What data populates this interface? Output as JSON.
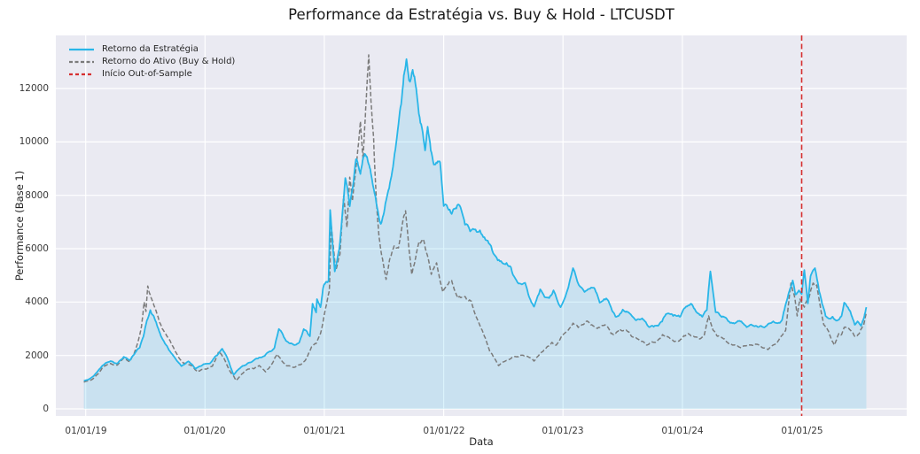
{
  "chart_data": {
    "type": "line",
    "title": "Performance da Estratégia vs. Buy & Hold - LTCUSDT",
    "xlabel": "Data",
    "ylabel": "Performance (Base 1)",
    "grid": true,
    "legend_position": "upper left",
    "plot_bg": "#eaeaf2",
    "grid_color": "#ffffff",
    "x_unit": "years since 2019-01-01",
    "x_range_years": [
      -0.25,
      6.88
    ],
    "y_range": [
      -265,
      13990
    ],
    "y_ticks": [
      0,
      2000,
      4000,
      6000,
      8000,
      10000,
      12000
    ],
    "x_ticks": [
      {
        "t": 0,
        "label": "01/01/19"
      },
      {
        "t": 1,
        "label": "01/01/20"
      },
      {
        "t": 2,
        "label": "01/01/21"
      },
      {
        "t": 3,
        "label": "01/01/22"
      },
      {
        "t": 4,
        "label": "01/01/23"
      },
      {
        "t": 5,
        "label": "01/01/24"
      },
      {
        "t": 6,
        "label": "01/01/25"
      }
    ],
    "vline": {
      "label": "Início Out-of-Sample",
      "x_years": 6.0,
      "color": "#d62f2f",
      "line_style": "dashed"
    },
    "series": [
      {
        "name": "Retorno da Estratégia",
        "color": "#29b6e8",
        "line_style": "solid",
        "fill_to_zero": true,
        "fill_color": "rgba(41,182,232,0.17)",
        "points": [
          [
            -0.015,
            1060
          ],
          [
            0.067,
            1230
          ],
          [
            0.141,
            1620
          ],
          [
            0.208,
            1790
          ],
          [
            0.267,
            1700
          ],
          [
            0.319,
            1950
          ],
          [
            0.371,
            1820
          ],
          [
            0.408,
            2050
          ],
          [
            0.453,
            2300
          ],
          [
            0.483,
            2700
          ],
          [
            0.512,
            3300
          ],
          [
            0.542,
            3700
          ],
          [
            0.572,
            3450
          ],
          [
            0.609,
            3000
          ],
          [
            0.653,
            2550
          ],
          [
            0.698,
            2200
          ],
          [
            0.757,
            1850
          ],
          [
            0.802,
            1600
          ],
          [
            0.861,
            1780
          ],
          [
            0.921,
            1500
          ],
          [
            0.973,
            1620
          ],
          [
            1.04,
            1700
          ],
          [
            1.099,
            2000
          ],
          [
            1.144,
            2250
          ],
          [
            1.188,
            1900
          ],
          [
            1.24,
            1280
          ],
          [
            1.285,
            1500
          ],
          [
            1.344,
            1650
          ],
          [
            1.403,
            1800
          ],
          [
            1.47,
            1930
          ],
          [
            1.53,
            2120
          ],
          [
            1.582,
            2290
          ],
          [
            1.619,
            2990
          ],
          [
            1.641,
            2880
          ],
          [
            1.678,
            2550
          ],
          [
            1.715,
            2450
          ],
          [
            1.752,
            2390
          ],
          [
            1.79,
            2490
          ],
          [
            1.827,
            2990
          ],
          [
            1.856,
            2880
          ],
          [
            1.879,
            2720
          ],
          [
            1.901,
            3940
          ],
          [
            1.931,
            3610
          ],
          [
            1.938,
            4110
          ],
          [
            1.968,
            3810
          ],
          [
            1.99,
            4540
          ],
          [
            2.012,
            4750
          ],
          [
            2.035,
            4800
          ],
          [
            2.049,
            7450
          ],
          [
            2.087,
            5150
          ],
          [
            2.124,
            5950
          ],
          [
            2.176,
            8650
          ],
          [
            2.213,
            7590
          ],
          [
            2.265,
            9350
          ],
          [
            2.302,
            8800
          ],
          [
            2.339,
            9550
          ],
          [
            2.376,
            9120
          ],
          [
            2.413,
            8250
          ],
          [
            2.473,
            6930
          ],
          [
            2.517,
            7800
          ],
          [
            2.569,
            8910
          ],
          [
            2.621,
            10670
          ],
          [
            2.666,
            12500
          ],
          [
            2.688,
            13100
          ],
          [
            2.71,
            12300
          ],
          [
            2.74,
            12700
          ],
          [
            2.77,
            12000
          ],
          [
            2.792,
            11050
          ],
          [
            2.844,
            9680
          ],
          [
            2.866,
            10570
          ],
          [
            2.918,
            9150
          ],
          [
            2.97,
            9240
          ],
          [
            3.0,
            7600
          ],
          [
            3.067,
            7300
          ],
          [
            3.119,
            7650
          ],
          [
            3.178,
            6900
          ],
          [
            3.267,
            6720
          ],
          [
            3.341,
            6430
          ],
          [
            3.416,
            5820
          ],
          [
            3.49,
            5470
          ],
          [
            3.564,
            5300
          ],
          [
            3.609,
            4820
          ],
          [
            3.683,
            4720
          ],
          [
            3.735,
            3990
          ],
          [
            3.757,
            3830
          ],
          [
            3.809,
            4480
          ],
          [
            3.883,
            4150
          ],
          [
            3.92,
            4440
          ],
          [
            3.98,
            3810
          ],
          [
            4.084,
            5270
          ],
          [
            4.18,
            4380
          ],
          [
            4.255,
            4540
          ],
          [
            4.307,
            3980
          ],
          [
            4.381,
            4040
          ],
          [
            4.44,
            3450
          ],
          [
            4.5,
            3720
          ],
          [
            4.552,
            3600
          ],
          [
            4.611,
            3320
          ],
          [
            4.663,
            3390
          ],
          [
            4.722,
            3060
          ],
          [
            4.797,
            3110
          ],
          [
            4.863,
            3550
          ],
          [
            4.923,
            3480
          ],
          [
            4.982,
            3450
          ],
          [
            5.027,
            3810
          ],
          [
            5.071,
            3940
          ],
          [
            5.123,
            3610
          ],
          [
            5.168,
            3450
          ],
          [
            5.205,
            3700
          ],
          [
            5.235,
            5150
          ],
          [
            5.257,
            4380
          ],
          [
            5.279,
            3620
          ],
          [
            5.346,
            3450
          ],
          [
            5.42,
            3210
          ],
          [
            5.48,
            3300
          ],
          [
            5.539,
            3060
          ],
          [
            5.613,
            3110
          ],
          [
            5.688,
            3050
          ],
          [
            5.762,
            3280
          ],
          [
            5.836,
            3330
          ],
          [
            5.888,
            4280
          ],
          [
            5.925,
            4810
          ],
          [
            5.948,
            4280
          ],
          [
            5.977,
            4440
          ],
          [
            6.0,
            4300
          ],
          [
            6.022,
            5200
          ],
          [
            6.052,
            3950
          ],
          [
            6.074,
            4970
          ],
          [
            6.111,
            5270
          ],
          [
            6.148,
            4380
          ],
          [
            6.171,
            3940
          ],
          [
            6.2,
            3480
          ],
          [
            6.237,
            3380
          ],
          [
            6.26,
            3450
          ],
          [
            6.297,
            3310
          ],
          [
            6.334,
            3480
          ],
          [
            6.356,
            3980
          ],
          [
            6.386,
            3810
          ],
          [
            6.408,
            3650
          ],
          [
            6.445,
            3150
          ],
          [
            6.468,
            3280
          ],
          [
            6.497,
            3110
          ],
          [
            6.52,
            3380
          ],
          [
            6.542,
            3810
          ]
        ]
      },
      {
        "name": "Retorno do Ativo (Buy & Hold)",
        "color": "#7b7b7b",
        "line_style": "dashed",
        "points": [
          [
            -0.015,
            1000
          ],
          [
            0.067,
            1150
          ],
          [
            0.141,
            1550
          ],
          [
            0.208,
            1700
          ],
          [
            0.267,
            1640
          ],
          [
            0.319,
            1900
          ],
          [
            0.371,
            1780
          ],
          [
            0.408,
            2100
          ],
          [
            0.438,
            2500
          ],
          [
            0.468,
            3100
          ],
          [
            0.49,
            4000
          ],
          [
            0.505,
            3650
          ],
          [
            0.52,
            4600
          ],
          [
            0.549,
            4150
          ],
          [
            0.579,
            3800
          ],
          [
            0.616,
            3280
          ],
          [
            0.668,
            2820
          ],
          [
            0.713,
            2490
          ],
          [
            0.765,
            2050
          ],
          [
            0.817,
            1720
          ],
          [
            0.891,
            1620
          ],
          [
            0.936,
            1390
          ],
          [
            1.01,
            1490
          ],
          [
            1.062,
            1600
          ],
          [
            1.114,
            2150
          ],
          [
            1.158,
            1900
          ],
          [
            1.21,
            1400
          ],
          [
            1.262,
            1060
          ],
          [
            1.307,
            1300
          ],
          [
            1.359,
            1490
          ],
          [
            1.455,
            1620
          ],
          [
            1.507,
            1390
          ],
          [
            1.567,
            1720
          ],
          [
            1.604,
            2050
          ],
          [
            1.641,
            1820
          ],
          [
            1.678,
            1620
          ],
          [
            1.752,
            1560
          ],
          [
            1.804,
            1660
          ],
          [
            1.841,
            1820
          ],
          [
            1.893,
            2320
          ],
          [
            1.931,
            2450
          ],
          [
            1.968,
            2820
          ],
          [
            1.99,
            3280
          ],
          [
            2.012,
            3810
          ],
          [
            2.042,
            4440
          ],
          [
            2.057,
            6930
          ],
          [
            2.094,
            5200
          ],
          [
            2.131,
            5800
          ],
          [
            2.161,
            7960
          ],
          [
            2.19,
            6800
          ],
          [
            2.213,
            8680
          ],
          [
            2.235,
            7790
          ],
          [
            2.272,
            9300
          ],
          [
            2.302,
            10770
          ],
          [
            2.324,
            9350
          ],
          [
            2.346,
            11200
          ],
          [
            2.372,
            13260
          ],
          [
            2.391,
            11500
          ],
          [
            2.413,
            10110
          ],
          [
            2.436,
            7790
          ],
          [
            2.458,
            6460
          ],
          [
            2.488,
            5600
          ],
          [
            2.517,
            4850
          ],
          [
            2.547,
            5600
          ],
          [
            2.584,
            6100
          ],
          [
            2.621,
            6030
          ],
          [
            2.681,
            7420
          ],
          [
            2.733,
            5040
          ],
          [
            2.77,
            5800
          ],
          [
            2.792,
            6260
          ],
          [
            2.829,
            6360
          ],
          [
            2.896,
            5040
          ],
          [
            2.941,
            5470
          ],
          [
            2.993,
            4380
          ],
          [
            3.067,
            4810
          ],
          [
            3.119,
            4150
          ],
          [
            3.178,
            4210
          ],
          [
            3.23,
            4040
          ],
          [
            3.29,
            3280
          ],
          [
            3.341,
            2720
          ],
          [
            3.386,
            2150
          ],
          [
            3.46,
            1620
          ],
          [
            3.535,
            1820
          ],
          [
            3.609,
            1950
          ],
          [
            3.683,
            1990
          ],
          [
            3.757,
            1790
          ],
          [
            3.831,
            2150
          ],
          [
            3.906,
            2490
          ],
          [
            3.943,
            2390
          ],
          [
            4.01,
            2820
          ],
          [
            4.084,
            3210
          ],
          [
            4.128,
            3050
          ],
          [
            4.195,
            3280
          ],
          [
            4.232,
            3150
          ],
          [
            4.307,
            3050
          ],
          [
            4.351,
            3150
          ],
          [
            4.403,
            2820
          ],
          [
            4.477,
            2990
          ],
          [
            4.529,
            2950
          ],
          [
            4.574,
            2720
          ],
          [
            4.626,
            2620
          ],
          [
            4.7,
            2390
          ],
          [
            4.774,
            2490
          ],
          [
            4.834,
            2780
          ],
          [
            4.9,
            2620
          ],
          [
            4.975,
            2550
          ],
          [
            5.049,
            2820
          ],
          [
            5.093,
            2720
          ],
          [
            5.145,
            2620
          ],
          [
            5.183,
            2750
          ],
          [
            5.22,
            3480
          ],
          [
            5.257,
            2950
          ],
          [
            5.294,
            2720
          ],
          [
            5.353,
            2620
          ],
          [
            5.42,
            2390
          ],
          [
            5.495,
            2290
          ],
          [
            5.569,
            2390
          ],
          [
            5.643,
            2390
          ],
          [
            5.717,
            2220
          ],
          [
            5.791,
            2450
          ],
          [
            5.866,
            2950
          ],
          [
            5.91,
            4710
          ],
          [
            5.94,
            4210
          ],
          [
            5.962,
            3480
          ],
          [
            5.985,
            4110
          ],
          [
            6.022,
            3810
          ],
          [
            6.059,
            4150
          ],
          [
            6.096,
            4710
          ],
          [
            6.126,
            4640
          ],
          [
            6.148,
            4040
          ],
          [
            6.185,
            3150
          ],
          [
            6.208,
            3050
          ],
          [
            6.245,
            2650
          ],
          [
            6.274,
            2390
          ],
          [
            6.311,
            2820
          ],
          [
            6.334,
            2780
          ],
          [
            6.356,
            3050
          ],
          [
            6.408,
            2950
          ],
          [
            6.445,
            2720
          ],
          [
            6.482,
            2820
          ],
          [
            6.52,
            3150
          ],
          [
            6.542,
            3600
          ]
        ]
      }
    ]
  }
}
